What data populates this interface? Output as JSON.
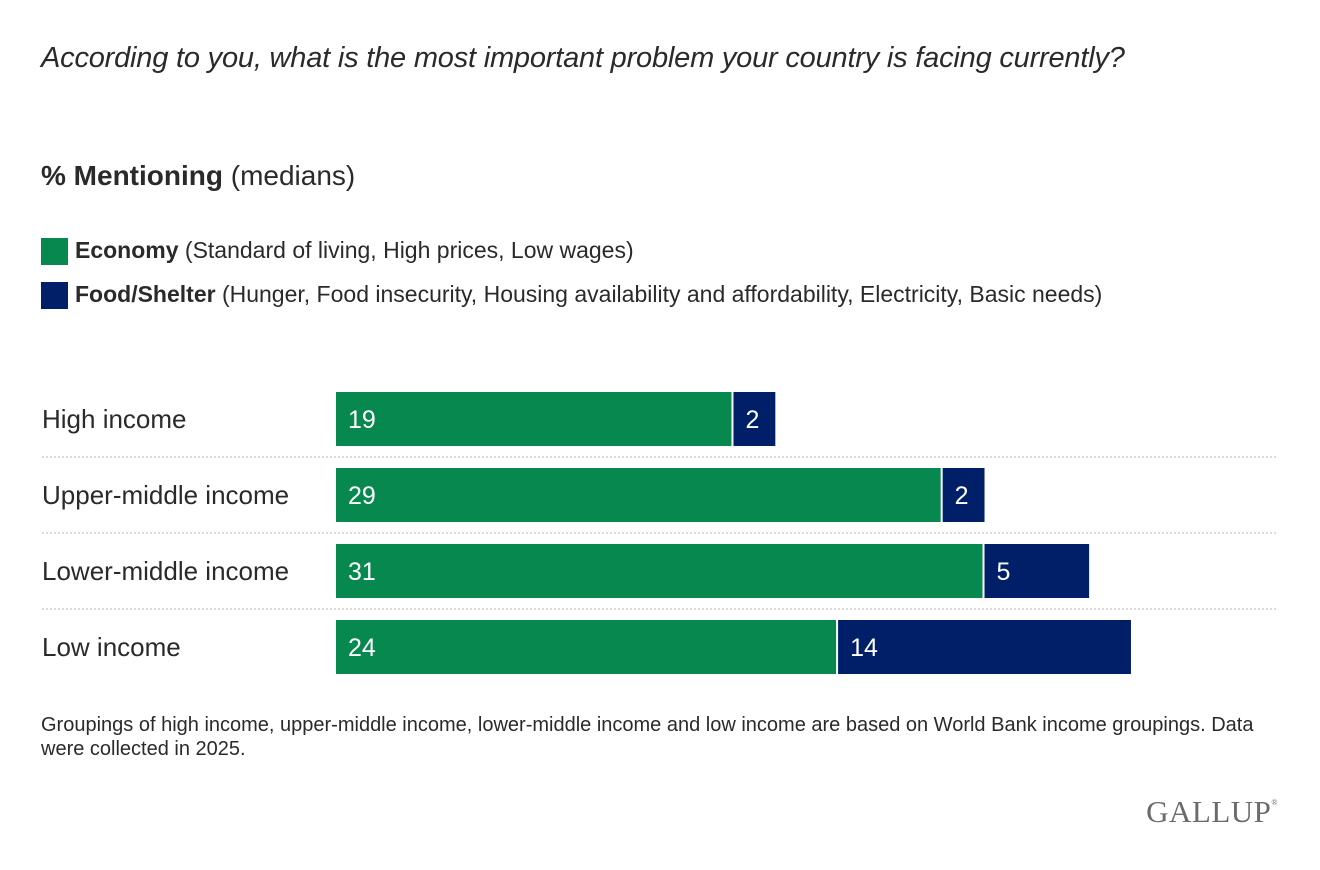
{
  "question": "According to you, what is the most important problem your country is facing currently?",
  "subtitle": {
    "bold": "% Mentioning",
    "normal": "(medians)"
  },
  "legend": [
    {
      "name": "Economy",
      "desc": "(Standard of living, High prices, Low wages)",
      "color": "#07884E"
    },
    {
      "name": "Food/Shelter",
      "desc": "(Hunger, Food insecurity, Housing availability and affordability, Electricity, Basic needs)",
      "color": "#001F69"
    }
  ],
  "chart_data": {
    "type": "bar",
    "orientation": "horizontal",
    "stacked": true,
    "title": "According to you, what is the most important problem your country is facing currently?",
    "subtitle": "% Mentioning (medians)",
    "categories": [
      "High income",
      "Upper-middle income",
      "Lower-middle income",
      "Low income"
    ],
    "series": [
      {
        "name": "Economy",
        "color": "#07884E",
        "values": [
          19,
          29,
          31,
          24
        ]
      },
      {
        "name": "Food/Shelter",
        "color": "#001F69",
        "values": [
          2,
          2,
          5,
          14
        ]
      }
    ],
    "xlim": [
      0,
      45
    ],
    "grid": false,
    "legend_position": "top-left",
    "data_labels": true
  },
  "footnote": "Groupings of high income, upper-middle income, lower-middle income and low income are based on World Bank income groupings. Data were collected in 2025.",
  "logo": {
    "text": "GALLUP",
    "mark": "®"
  }
}
